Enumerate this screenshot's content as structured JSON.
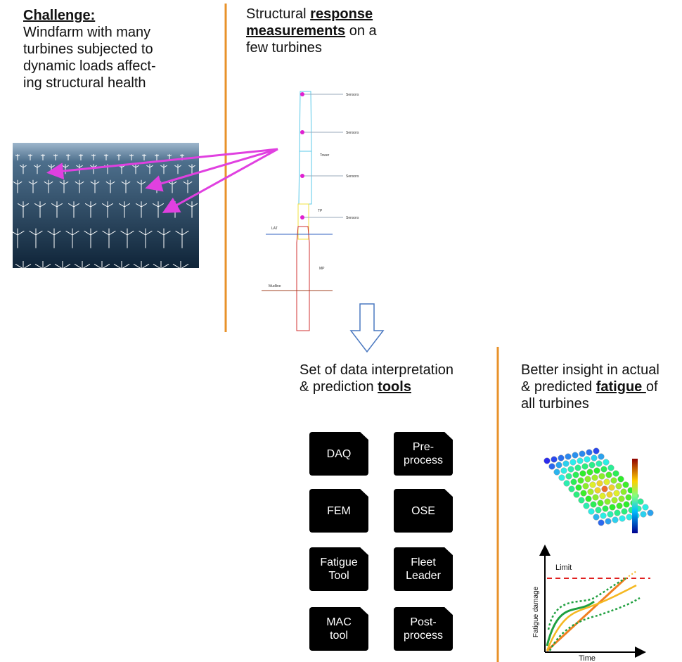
{
  "challenge": {
    "title": "Challenge:",
    "lines": [
      "Windfarm with many",
      "turbines subjected to",
      "dynamic loads affect-",
      "ing structural health"
    ]
  },
  "response": {
    "lines": [
      [
        {
          "text": "Structural ",
          "bold": false
        },
        {
          "text": "response",
          "bold": true
        }
      ],
      [
        {
          "text": "measurements",
          "bold": true
        },
        {
          "text": " on a",
          "bold": false
        }
      ],
      [
        {
          "text": "few turbines",
          "bold": false
        }
      ]
    ]
  },
  "tower": {
    "sensors": [
      "Sensors",
      "Sensors",
      "Sensors",
      "Sensors"
    ],
    "tower": "Tower",
    "tp": "TP",
    "lat": "LAT",
    "mp": "MP",
    "mudline": "Mudline"
  },
  "tools_heading": {
    "lines": [
      [
        {
          "text": "Set of data interpretation",
          "bold": false
        }
      ],
      [
        {
          "text": "& prediction ",
          "bold": false
        },
        {
          "text": "tools",
          "bold": true
        }
      ]
    ]
  },
  "tools": [
    [
      "DAQ"
    ],
    [
      "Pre-",
      "process"
    ],
    [
      "FEM"
    ],
    [
      "OSE"
    ],
    [
      "Fatigue",
      "Tool"
    ],
    [
      "Fleet",
      "Leader"
    ],
    [
      "MAC",
      "tool"
    ],
    [
      "Post-",
      "process"
    ]
  ],
  "insight": {
    "lines": [
      [
        {
          "text": "Better insight in actual",
          "bold": false
        }
      ],
      [
        {
          "text": "& predicted ",
          "bold": false
        },
        {
          "text": "fatigue ",
          "bold": true
        },
        {
          "text": "of",
          "bold": false
        }
      ],
      [
        {
          "text": "all turbines",
          "bold": false
        }
      ]
    ]
  },
  "fatigue_chart": {
    "limit": "Limit",
    "y_label": "Fatigue damage",
    "x_label": "Time"
  }
}
